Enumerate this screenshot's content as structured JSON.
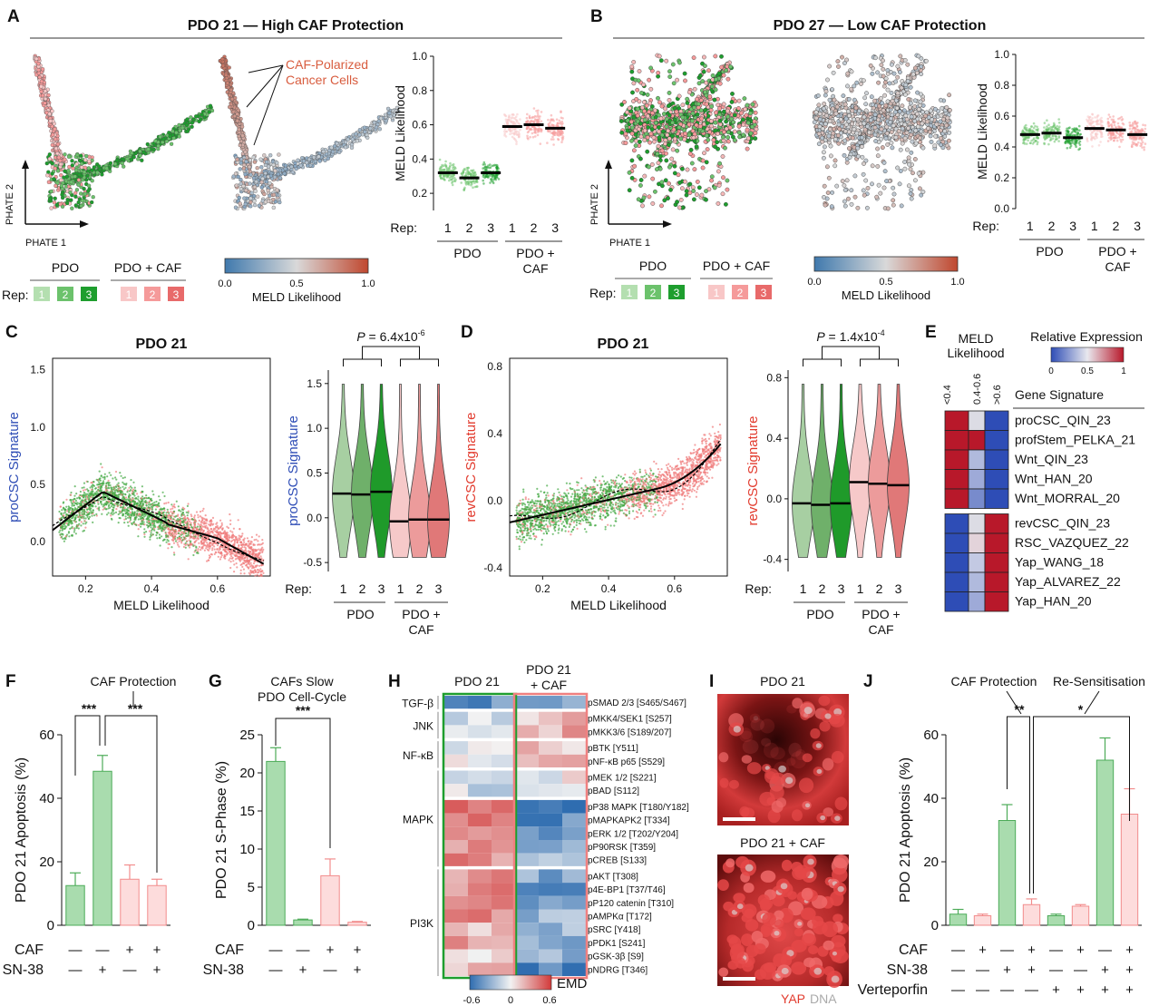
{
  "colors": {
    "green_dark": "#1e9e2e",
    "green_mid": "#6cc26c",
    "green_light": "#b4dfb0",
    "red_dark": "#e86a6a",
    "red_mid": "#f59a9a",
    "red_light": "#f8c7c7",
    "blue": "#2e4db6",
    "red_text": "#e23b2e",
    "caf_text": "#d85c3e",
    "cmap_low": "#3f79ad",
    "cmap_mid": "#d9d9d9",
    "cmap_high": "#c0472e"
  },
  "panelA": {
    "letter": "A",
    "title": "PDO 21 — High CAF Protection",
    "axis_x": "PHATE 1",
    "axis_y": "PHATE 2",
    "annotation": [
      "CAF-Polarized",
      "Cancer Cells"
    ],
    "legend": {
      "pdo": "PDO",
      "pdocaf": "PDO + CAF",
      "rep": "Rep:",
      "reps": [
        "1",
        "2",
        "3"
      ]
    },
    "colorbar": {
      "ticks": [
        "0.0",
        "0.5",
        "1.0"
      ],
      "label": "MELD Likelihood"
    }
  },
  "chartA": {
    "type": "scatter",
    "ylabel": "MELD Likelihood",
    "yticks": [
      "0.2",
      "0.4",
      "0.6",
      "0.8",
      "1.0"
    ],
    "ylim": [
      0.1,
      1.0
    ],
    "rep_label": "Rep:",
    "reps": [
      "1",
      "2",
      "3",
      "1",
      "2",
      "3"
    ],
    "group1": "PDO",
    "group2": [
      "PDO +",
      "CAF"
    ],
    "medians": [
      0.32,
      0.29,
      0.32,
      0.59,
      0.6,
      0.58
    ]
  },
  "panelB": {
    "letter": "B",
    "title": "PDO 27 — Low CAF Protection",
    "axis_x": "PHATE 1",
    "axis_y": "PHATE 2",
    "legend": {
      "pdo": "PDO",
      "pdocaf": "PDO + CAF",
      "rep": "Rep:",
      "reps": [
        "1",
        "2",
        "3"
      ]
    },
    "colorbar": {
      "ticks": [
        "0.0",
        "0.5",
        "1.0"
      ],
      "label": "MELD Likelihood"
    }
  },
  "chartB": {
    "type": "scatter",
    "ylabel": "MELD Likelihood",
    "yticks": [
      "0.0",
      "0.2",
      "0.4",
      "0.6",
      "0.8",
      "1.0"
    ],
    "ylim": [
      0,
      1.0
    ],
    "rep_label": "Rep:",
    "reps": [
      "1",
      "2",
      "3",
      "1",
      "2",
      "3"
    ],
    "group1": "PDO",
    "group2": [
      "PDO +",
      "CAF"
    ],
    "medians": [
      0.48,
      0.49,
      0.46,
      0.52,
      0.51,
      0.48
    ]
  },
  "panelC": {
    "letter": "C",
    "title": "PDO 21",
    "ylabel": "proCSC Signature",
    "xlabel": "MELD Likelihood",
    "xticks": [
      "0.2",
      "0.4",
      "0.6"
    ],
    "yticks": [
      "0.0",
      "0.5",
      "1.0",
      "1.5"
    ],
    "violin": {
      "p_prefix": "P = 6.4x10",
      "p_exp": "-6",
      "yticks": [
        "-0.5",
        "0.0",
        "0.5",
        "1.0",
        "1.5"
      ],
      "medians": [
        0.27,
        0.26,
        0.29,
        -0.04,
        -0.02,
        -0.02
      ],
      "rep_label": "Rep:",
      "reps": [
        "1",
        "2",
        "3",
        "1",
        "2",
        "3"
      ],
      "group1": "PDO",
      "group2": [
        "PDO +",
        "CAF"
      ]
    }
  },
  "panelD": {
    "letter": "D",
    "title": "PDO 21",
    "ylabel": "revCSC Signature",
    "xlabel": "MELD Likelihood",
    "xticks": [
      "0.2",
      "0.4",
      "0.6"
    ],
    "yticks": [
      "-0.4",
      "0.0",
      "0.4",
      "0.8"
    ],
    "violin": {
      "p_prefix": "P = 1.4x10",
      "p_exp": "-4",
      "yticks": [
        "-0.4",
        "0.0",
        "0.4",
        "0.8"
      ],
      "medians": [
        -0.03,
        -0.04,
        -0.03,
        0.11,
        0.1,
        0.09
      ],
      "rep_label": "Rep:",
      "reps": [
        "1",
        "2",
        "3",
        "1",
        "2",
        "3"
      ],
      "group1": "PDO",
      "group2": [
        "PDO +",
        "CAF"
      ]
    }
  },
  "panelE": {
    "letter": "E",
    "meld": [
      "MELD",
      "Likelihood"
    ],
    "rel_expr": "Relative Expression",
    "cb_ticks": [
      "0",
      "0.5",
      "1"
    ],
    "cols": [
      "<0.4",
      "0.4-0.6",
      ">0.6"
    ],
    "gene_sig": "Gene Signature",
    "genes": [
      "proCSC_QIN_23",
      "profStem_PELKA_21",
      "Wnt_QIN_23",
      "Wnt_HAN_20",
      "Wnt_MORRAL_20",
      "revCSC_QIN_23",
      "RSC_VAZQUEZ_22",
      "Yap_WANG_18",
      "Yap_ALVAREZ_22",
      "Yap_HAN_20"
    ],
    "matrix": [
      [
        1,
        0.5,
        0
      ],
      [
        1,
        1,
        0
      ],
      [
        1,
        0.35,
        0
      ],
      [
        1,
        0.3,
        0
      ],
      [
        1,
        0.2,
        0
      ],
      [
        0,
        0.5,
        1
      ],
      [
        0,
        0.55,
        1
      ],
      [
        0,
        0.4,
        1
      ],
      [
        0,
        0.35,
        1
      ],
      [
        0,
        0.3,
        1
      ]
    ]
  },
  "panelF": {
    "letter": "F",
    "annotation": "CAF Protection",
    "ylabel": "PDO 21 Apoptosis (%)",
    "yticks": [
      "0",
      "20",
      "40",
      "60"
    ],
    "ylim": [
      0,
      60
    ],
    "values": [
      12.5,
      48.5,
      14.5,
      12.5
    ],
    "errors": [
      4,
      5,
      4.5,
      2
    ],
    "sig": [
      "***",
      "***"
    ],
    "row_labels": [
      "CAF",
      "SN-38"
    ],
    "caf": [
      "—",
      "—",
      "+",
      "+"
    ],
    "sn38": [
      "—",
      "+",
      "—",
      "+"
    ]
  },
  "panelG": {
    "letter": "G",
    "annotation": [
      "CAFs Slow",
      "PDO Cell-Cycle"
    ],
    "ylabel": "PDO 21 S-Phase (%)",
    "yticks": [
      "0",
      "5",
      "10",
      "15",
      "20",
      "25"
    ],
    "ylim": [
      0,
      25
    ],
    "values": [
      21.5,
      0.7,
      6.5,
      0.4
    ],
    "errors": [
      1.8,
      0.1,
      2.2,
      0.1
    ],
    "sig": "***",
    "row_labels": [
      "CAF",
      "SN-38"
    ],
    "caf": [
      "—",
      "—",
      "+",
      "+"
    ],
    "sn38": [
      "—",
      "+",
      "—",
      "+"
    ]
  },
  "panelH": {
    "letter": "H",
    "col1": "PDO 21",
    "col2": [
      "PDO 21",
      "+ CAF"
    ],
    "groups": [
      "TGF-β",
      "JNK",
      "NF-κB",
      "MAPK",
      "PI3K"
    ],
    "labels": [
      "pSMAD 2/3 [S465/S467]",
      "pMKK4/SEK1 [S257]",
      "pMKK3/6 [S189/207]",
      "pBTK [Y511]",
      "pNF-κB p65 [S529]",
      "pMEK 1/2 [S221]",
      "pBAD [S112]",
      "pP38 MAPK [T180/Y182]",
      "pMAPKAPK2 [T334]",
      "pERK 1/2 [T202/Y204]",
      "pP90RSK [T359]",
      "pCREB [S133]",
      "pAKT [T308]",
      "p4E-BP1 [T37/T46]",
      "pP120 catenin [T310]",
      "pAMPKα [T172]",
      "pSRC [Y418]",
      "pPDK1 [S241]",
      "pGSK-3β [S9]",
      "pNDRG [T346]"
    ],
    "cb_label": "EMD",
    "cb_ticks": [
      "-0.6",
      "0",
      "0.6"
    ]
  },
  "panelI": {
    "letter": "I",
    "title1": "PDO 21",
    "title2": "PDO 21 + CAF",
    "yap": "YAP",
    "dna": "DNA"
  },
  "panelJ": {
    "letter": "J",
    "ann1": "CAF Protection",
    "ann2": "Re-Sensitisation",
    "ylabel": "PDO 21 Apoptosis (%)",
    "yticks": [
      "0",
      "20",
      "40",
      "60"
    ],
    "ylim": [
      0,
      60
    ],
    "values": [
      3.5,
      3,
      33,
      6.5,
      3,
      6,
      52,
      35
    ],
    "errors": [
      1.5,
      0.5,
      5,
      1.8,
      0.5,
      0.5,
      7,
      8
    ],
    "sig": [
      "**",
      "*"
    ],
    "row_labels": [
      "CAF",
      "SN-38",
      "Verteporfin"
    ],
    "caf": [
      "—",
      "+",
      "—",
      "+",
      "—",
      "+",
      "—",
      "+"
    ],
    "sn38": [
      "—",
      "—",
      "+",
      "+",
      "—",
      "—",
      "+",
      "+"
    ],
    "vert": [
      "—",
      "—",
      "—",
      "—",
      "+",
      "+",
      "+",
      "+"
    ]
  }
}
